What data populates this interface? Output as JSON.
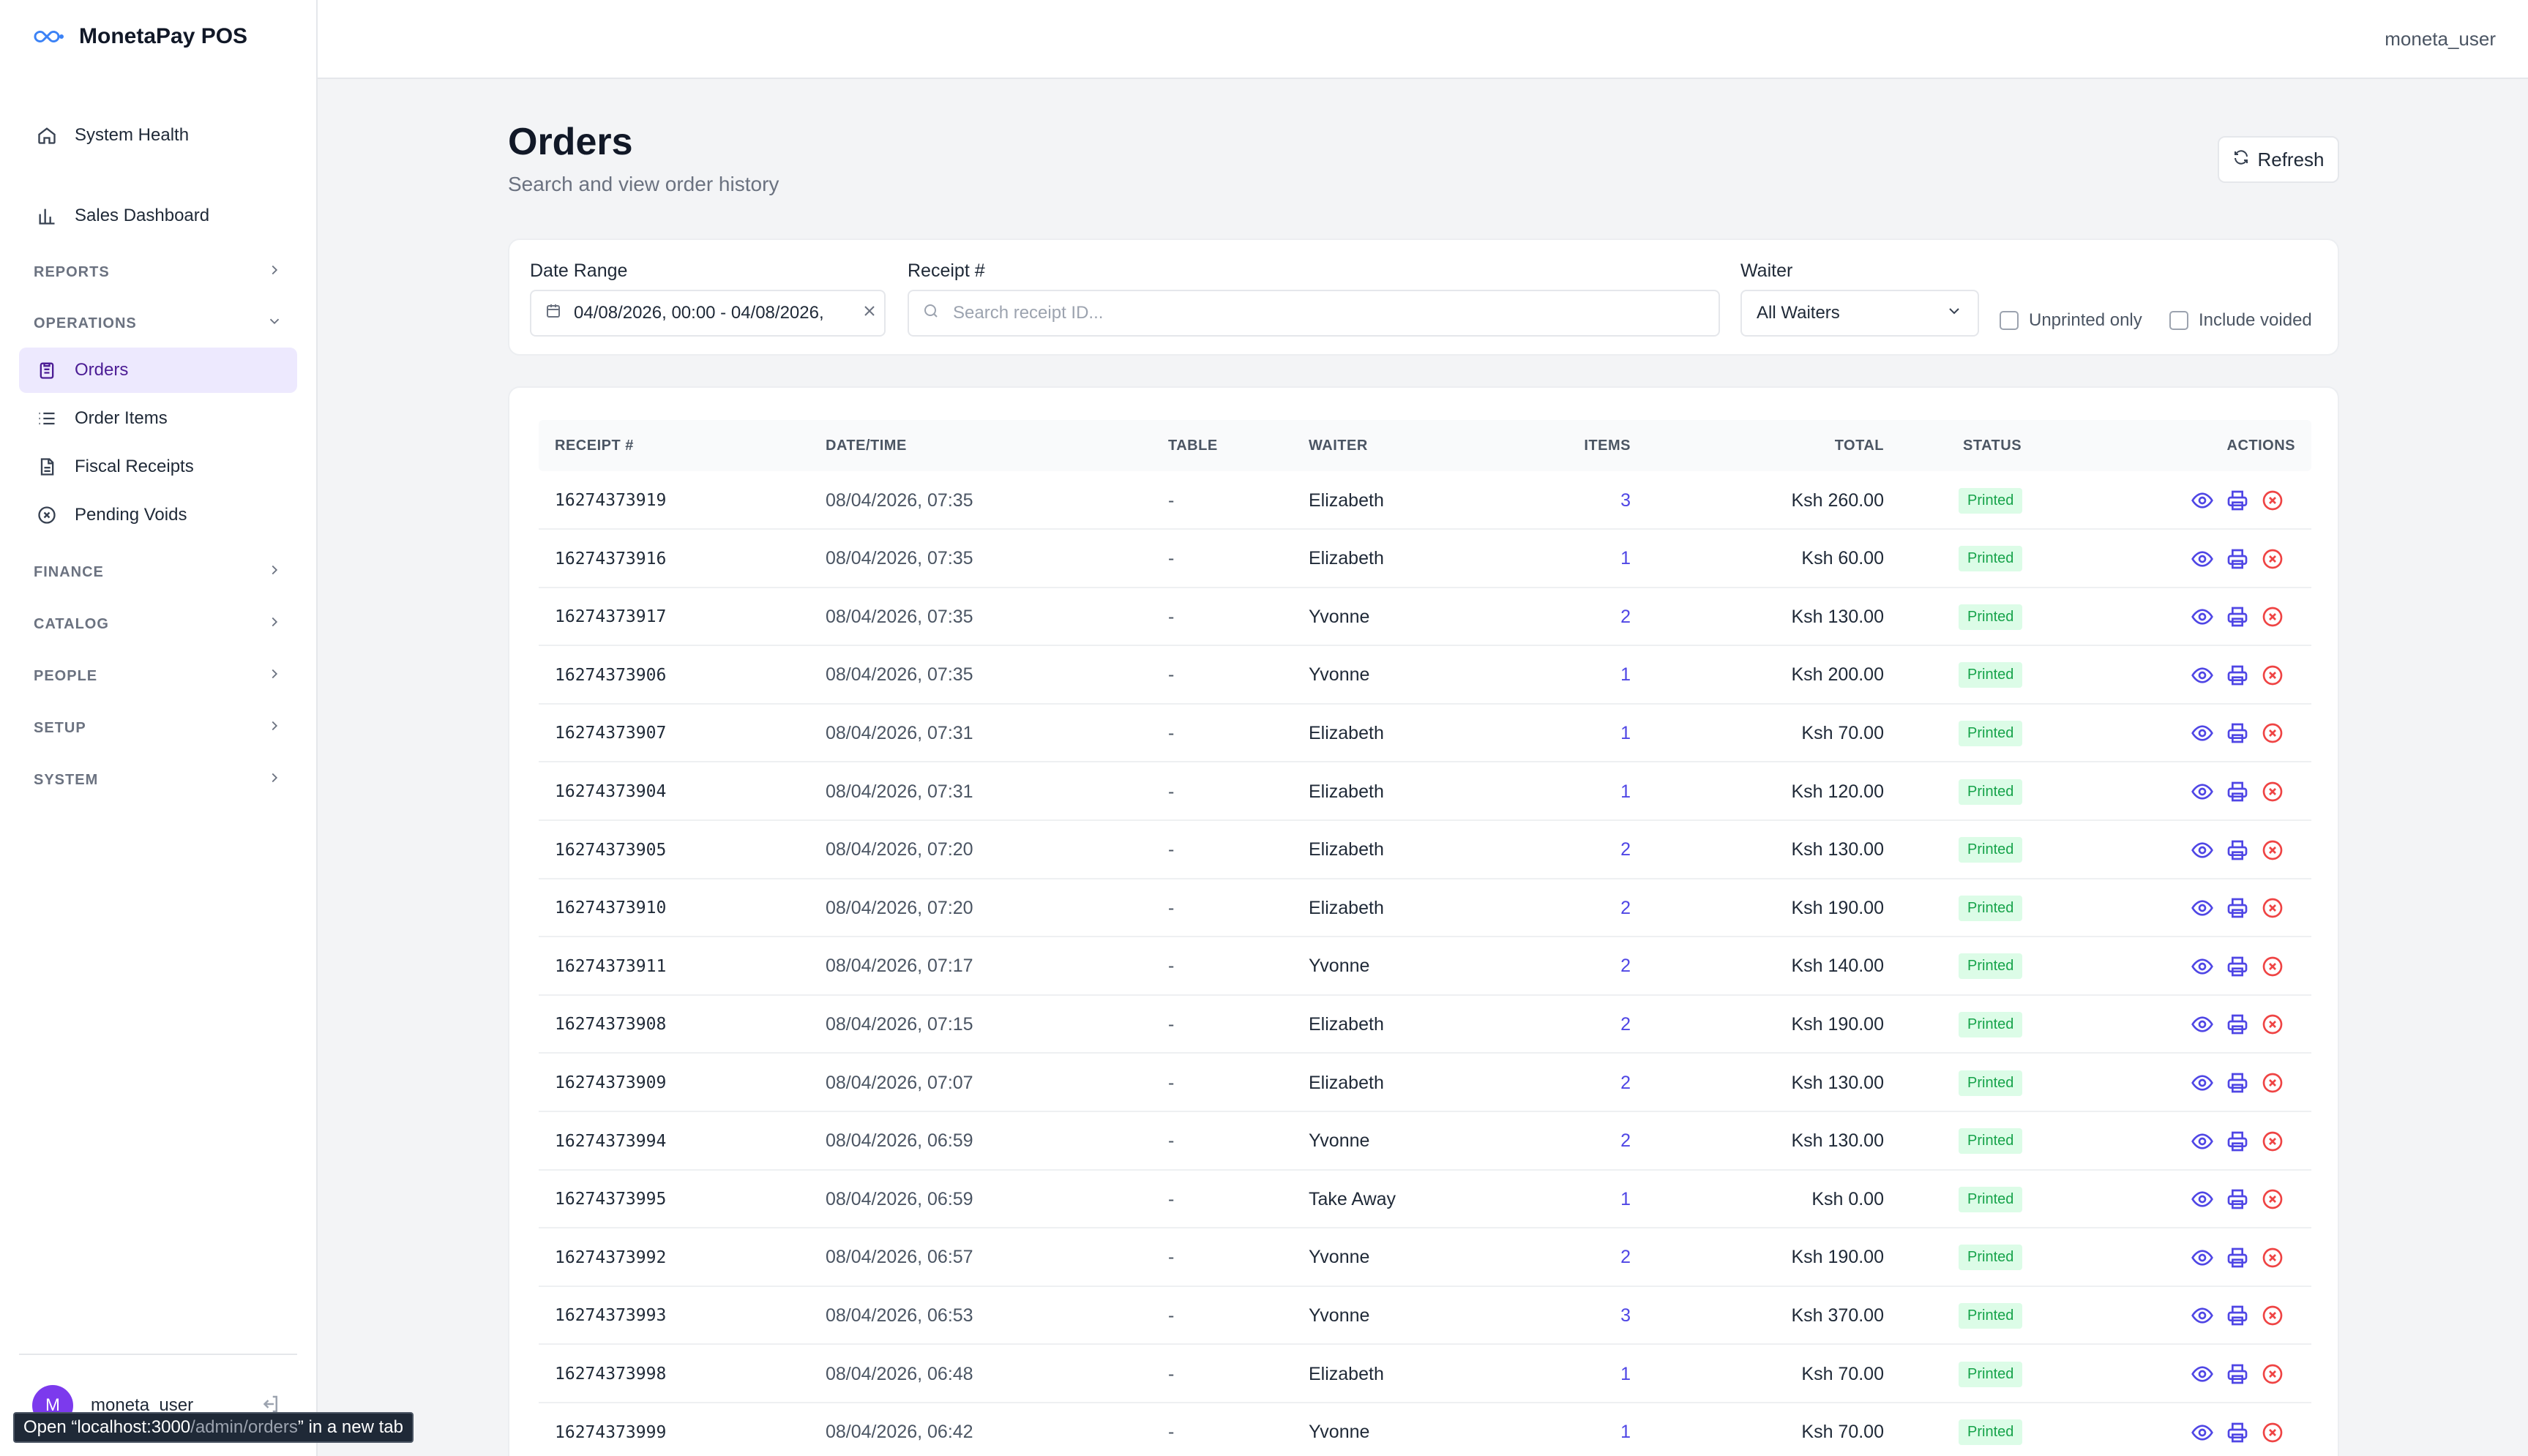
{
  "app": {
    "title": "MonetaPay POS"
  },
  "topbar": {
    "user": "moneta_user"
  },
  "sidebar": {
    "top_items": [
      {
        "label": "System Health",
        "icon": "home-icon"
      },
      {
        "label": "Sales Dashboard",
        "icon": "bar-chart-icon"
      }
    ],
    "sections": {
      "reports": "REPORTS",
      "operations": "OPERATIONS",
      "finance": "FINANCE",
      "catalog": "CATALOG",
      "people": "PEOPLE",
      "setup": "SETUP",
      "system": "SYSTEM"
    },
    "operations_items": [
      {
        "label": "Orders",
        "icon": "clipboard-icon",
        "active": true
      },
      {
        "label": "Order Items",
        "icon": "list-icon",
        "active": false
      },
      {
        "label": "Fiscal Receipts",
        "icon": "document-icon",
        "active": false
      },
      {
        "label": "Pending Voids",
        "icon": "circle-x-icon",
        "active": false
      }
    ],
    "user": {
      "initial": "M",
      "name": "moneta_user"
    }
  },
  "tooltip": {
    "prefix": "Open “localhost:3000",
    "path": "/admin/orders",
    "suffix": "” in a new tab"
  },
  "page": {
    "title": "Orders",
    "subtitle": "Search and view order history",
    "refresh_label": "Refresh"
  },
  "filters": {
    "date_range_label": "Date Range",
    "date_range_value": "04/08/2026, 00:00 - 04/08/2026,",
    "receipt_label": "Receipt #",
    "receipt_placeholder": "Search receipt ID...",
    "waiter_label": "Waiter",
    "waiter_value": "All Waiters",
    "unprinted_label": "Unprinted only",
    "voided_label": "Include voided"
  },
  "table": {
    "headers": {
      "receipt": "RECEIPT #",
      "datetime": "DATE/TIME",
      "table": "TABLE",
      "waiter": "WAITER",
      "items": "ITEMS",
      "total": "TOTAL",
      "status": "STATUS",
      "actions": "ACTIONS"
    },
    "rows": [
      {
        "receipt": "16274373919",
        "datetime": "08/04/2026, 07:35",
        "table": "-",
        "waiter": "Elizabeth",
        "items": "3",
        "total": "Ksh 260.00",
        "status": "Printed"
      },
      {
        "receipt": "16274373916",
        "datetime": "08/04/2026, 07:35",
        "table": "-",
        "waiter": "Elizabeth",
        "items": "1",
        "total": "Ksh 60.00",
        "status": "Printed"
      },
      {
        "receipt": "16274373917",
        "datetime": "08/04/2026, 07:35",
        "table": "-",
        "waiter": "Yvonne",
        "items": "2",
        "total": "Ksh 130.00",
        "status": "Printed"
      },
      {
        "receipt": "16274373906",
        "datetime": "08/04/2026, 07:35",
        "table": "-",
        "waiter": "Yvonne",
        "items": "1",
        "total": "Ksh 200.00",
        "status": "Printed"
      },
      {
        "receipt": "16274373907",
        "datetime": "08/04/2026, 07:31",
        "table": "-",
        "waiter": "Elizabeth",
        "items": "1",
        "total": "Ksh 70.00",
        "status": "Printed"
      },
      {
        "receipt": "16274373904",
        "datetime": "08/04/2026, 07:31",
        "table": "-",
        "waiter": "Elizabeth",
        "items": "1",
        "total": "Ksh 120.00",
        "status": "Printed"
      },
      {
        "receipt": "16274373905",
        "datetime": "08/04/2026, 07:20",
        "table": "-",
        "waiter": "Elizabeth",
        "items": "2",
        "total": "Ksh 130.00",
        "status": "Printed"
      },
      {
        "receipt": "16274373910",
        "datetime": "08/04/2026, 07:20",
        "table": "-",
        "waiter": "Elizabeth",
        "items": "2",
        "total": "Ksh 190.00",
        "status": "Printed"
      },
      {
        "receipt": "16274373911",
        "datetime": "08/04/2026, 07:17",
        "table": "-",
        "waiter": "Yvonne",
        "items": "2",
        "total": "Ksh 140.00",
        "status": "Printed"
      },
      {
        "receipt": "16274373908",
        "datetime": "08/04/2026, 07:15",
        "table": "-",
        "waiter": "Elizabeth",
        "items": "2",
        "total": "Ksh 190.00",
        "status": "Printed"
      },
      {
        "receipt": "16274373909",
        "datetime": "08/04/2026, 07:07",
        "table": "-",
        "waiter": "Elizabeth",
        "items": "2",
        "total": "Ksh 130.00",
        "status": "Printed"
      },
      {
        "receipt": "16274373994",
        "datetime": "08/04/2026, 06:59",
        "table": "-",
        "waiter": "Yvonne",
        "items": "2",
        "total": "Ksh 130.00",
        "status": "Printed"
      },
      {
        "receipt": "16274373995",
        "datetime": "08/04/2026, 06:59",
        "table": "-",
        "waiter": "Take Away",
        "items": "1",
        "total": "Ksh 0.00",
        "status": "Printed"
      },
      {
        "receipt": "16274373992",
        "datetime": "08/04/2026, 06:57",
        "table": "-",
        "waiter": "Yvonne",
        "items": "2",
        "total": "Ksh 190.00",
        "status": "Printed"
      },
      {
        "receipt": "16274373993",
        "datetime": "08/04/2026, 06:53",
        "table": "-",
        "waiter": "Yvonne",
        "items": "3",
        "total": "Ksh 370.00",
        "status": "Printed"
      },
      {
        "receipt": "16274373998",
        "datetime": "08/04/2026, 06:48",
        "table": "-",
        "waiter": "Elizabeth",
        "items": "1",
        "total": "Ksh 70.00",
        "status": "Printed"
      },
      {
        "receipt": "16274373999",
        "datetime": "08/04/2026, 06:42",
        "table": "-",
        "waiter": "Yvonne",
        "items": "1",
        "total": "Ksh 70.00",
        "status": "Printed"
      }
    ],
    "action_icons": [
      "eye-icon",
      "printer-icon",
      "void-x-icon"
    ]
  },
  "colors": {
    "accent": "#4f46e5",
    "active_bg": "#ede9fe",
    "status_printed_bg": "#dcfce7",
    "status_printed_text": "#16a34a",
    "void_red": "#ef4444"
  }
}
